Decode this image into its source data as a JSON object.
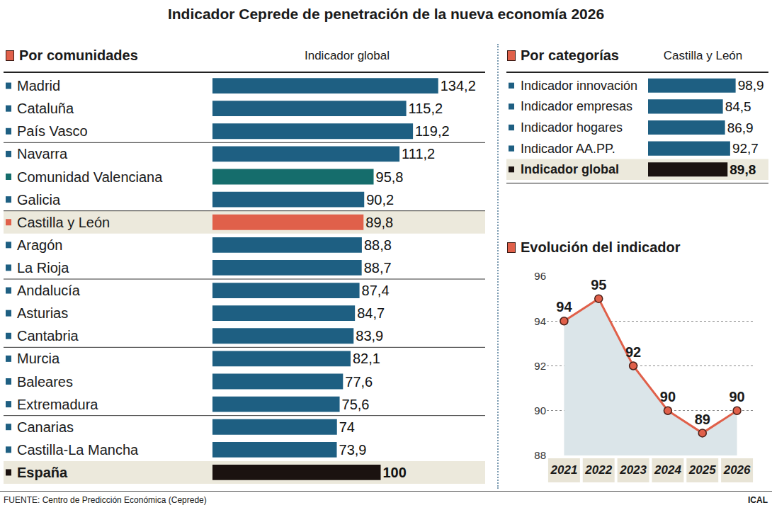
{
  "title": "Indicador Ceprede de penetración de la nueva economía 2026",
  "source": "FUENTE: Centro de Predicción Económica (Ceprede)",
  "credit": "ICAL",
  "chart_data": [
    {
      "type": "bar",
      "title": "Por comunidades",
      "subtitle": "Indicador global",
      "orientation": "horizontal",
      "categories": [
        "Madrid",
        "Cataluña",
        "País Vasco",
        "Navarra",
        "Comunidad Valenciana",
        "Galicia",
        "Castilla y León",
        "Aragón",
        "La Rioja",
        "Andalucía",
        "Asturias",
        "Cantabria",
        "Murcia",
        "Baleares",
        "Extremadura",
        "Canarias",
        "Castilla-La Mancha",
        "España"
      ],
      "values": [
        134.2,
        115.2,
        119.2,
        111.2,
        95.8,
        90.2,
        89.8,
        88.8,
        88.7,
        87.4,
        84.7,
        83.9,
        82.1,
        77.6,
        75.6,
        74,
        73.9,
        100
      ],
      "value_labels": [
        "134,2",
        "115,2",
        "119,2",
        "111,2",
        "95,8",
        "90,2",
        "89,8",
        "88,8",
        "88,7",
        "87,4",
        "84,7",
        "83,9",
        "82,1",
        "77,6",
        "75,6",
        "74",
        "73,9",
        "100"
      ],
      "colors": [
        "#1e5f82",
        "#1e5f82",
        "#1e5f82",
        "#1e5f82",
        "#156d6c",
        "#1e5f82",
        "#e0604a",
        "#1e5f82",
        "#1e5f82",
        "#1e5f82",
        "#1e5f82",
        "#1e5f82",
        "#1e5f82",
        "#1e5f82",
        "#1e5f82",
        "#1e5f82",
        "#1e5f82",
        "#1b1210"
      ],
      "xlim": [
        0,
        160
      ],
      "data_labels": true,
      "tick_labels": "y",
      "grid": false
    },
    {
      "type": "bar",
      "title": "Por categorías",
      "subtitle": "Castilla y León",
      "orientation": "horizontal",
      "categories": [
        "Indicador innovación",
        "Indicador empresas",
        "Indicador hogares",
        "Indicador AA.PP.",
        "Indicador global"
      ],
      "values": [
        98.9,
        84.5,
        86.9,
        92.7,
        89.8
      ],
      "value_labels": [
        "98,9",
        "84,5",
        "86,9",
        "92,7",
        "89,8"
      ],
      "colors": [
        "#1e5f82",
        "#1e5f82",
        "#1e5f82",
        "#1e5f82",
        "#1b1210"
      ],
      "xlim": [
        0,
        100
      ],
      "data_labels": true,
      "tick_labels": "y",
      "grid": false
    },
    {
      "type": "line",
      "title": "Evolución del indicador",
      "categories": [
        "2021",
        "2022",
        "2023",
        "2024",
        "2025",
        "2026"
      ],
      "values": [
        94,
        95,
        92,
        90,
        89,
        90
      ],
      "color": "#e0604a",
      "marker": "circle",
      "ylim": [
        88,
        96
      ],
      "yticks": [
        88,
        90,
        92,
        94,
        96
      ],
      "grid": true,
      "data_labels": true
    }
  ]
}
